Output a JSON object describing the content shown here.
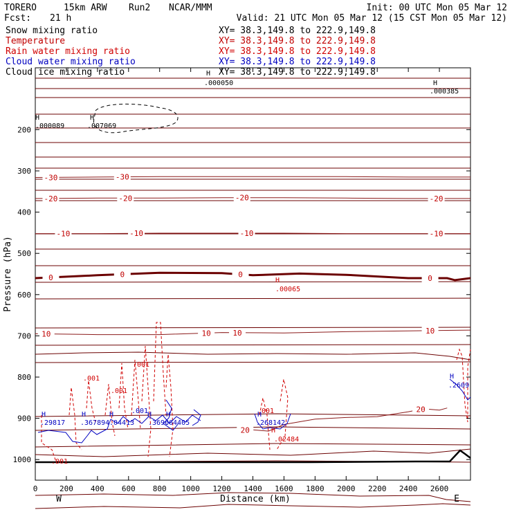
{
  "header": {
    "model_line": [
      "TORERO",
      "15km ARW",
      "Run2",
      "NCAR/MMM"
    ],
    "init": "Init: 00 UTC Mon 05 Mar 12",
    "fcst_label": "Fcst:",
    "fcst_value": "21 h",
    "valid": "Valid: 21 UTC Mon 05 Mar 12 (15 CST Mon 05 Mar 12)"
  },
  "legend": [
    {
      "name": "Snow mixing ratio",
      "xy": "XY=  38.3,149.8 to 222.9,149.8",
      "color": "#000000"
    },
    {
      "name": "Temperature",
      "xy": "XY=  38.3,149.8 to 222.9,149.8",
      "color": "#c00000"
    },
    {
      "name": "Rain water mixing ratio",
      "xy": "XY=  38.3,149.8 to 222.9,149.8",
      "color": "#d00000"
    },
    {
      "name": "Cloud water mixing ratio",
      "xy": "XY=  38.3,149.8 to 222.9,149.8",
      "color": "#0000c0"
    },
    {
      "name": "Cloud ice mixing ratio",
      "xy": "XY=  38.3,149.8 to 222.9,149.8",
      "color": "#000000"
    }
  ],
  "chart_data": {
    "type": "line",
    "title": "",
    "xlabel": "Distance (km)",
    "ylabel": "Pressure (hPa)",
    "xlim": [
      0,
      2800
    ],
    "ylim": [
      1050,
      50
    ],
    "x_ticks": [
      0,
      200,
      400,
      600,
      800,
      1000,
      1200,
      1400,
      1600,
      1800,
      2000,
      2200,
      2400,
      2600
    ],
    "y_ticks": [
      200,
      300,
      400,
      500,
      600,
      700,
      800,
      900,
      1000
    ],
    "x_end_labels": [
      "W",
      "E"
    ],
    "temperature_isotherms": [
      {
        "value": -30,
        "points": [
          [
            0,
            316
          ],
          [
            400,
            315
          ],
          [
            800,
            314
          ],
          [
            1200,
            314
          ],
          [
            1600,
            314
          ],
          [
            2000,
            314
          ],
          [
            2400,
            315
          ],
          [
            2800,
            315
          ]
        ],
        "labels": [
          [
            100,
            -30
          ],
          [
            560,
            -30
          ]
        ]
      },
      {
        "value": -20,
        "points": [
          [
            0,
            367
          ],
          [
            400,
            366
          ],
          [
            800,
            366
          ],
          [
            1200,
            365
          ],
          [
            1600,
            365
          ],
          [
            2000,
            366
          ],
          [
            2400,
            367
          ],
          [
            2800,
            367
          ]
        ],
        "labels": [
          [
            100,
            -20
          ],
          [
            580,
            -20
          ],
          [
            1330,
            -20
          ],
          [
            2580,
            -20
          ]
        ]
      },
      {
        "value": -10,
        "points": [
          [
            0,
            452
          ],
          [
            400,
            452
          ],
          [
            800,
            451
          ],
          [
            1200,
            451
          ],
          [
            1600,
            451
          ],
          [
            2000,
            452
          ],
          [
            2400,
            452
          ],
          [
            2800,
            452
          ]
        ],
        "labels": [
          [
            180,
            -10
          ],
          [
            650,
            -10
          ],
          [
            1360,
            -10
          ],
          [
            2580,
            -10
          ]
        ]
      },
      {
        "value": 0,
        "points": [
          [
            0,
            560
          ],
          [
            400,
            553
          ],
          [
            800,
            547
          ],
          [
            1200,
            548
          ],
          [
            1400,
            553
          ],
          [
            1700,
            549
          ],
          [
            2000,
            552
          ],
          [
            2400,
            560
          ],
          [
            2650,
            560
          ],
          [
            2700,
            565
          ],
          [
            2800,
            560
          ]
        ],
        "labels": [
          [
            100,
            0
          ],
          [
            560,
            0
          ],
          [
            1320,
            0
          ],
          [
            2540,
            0
          ]
        ]
      },
      {
        "value": 10,
        "points": [
          [
            0,
            695
          ],
          [
            400,
            697
          ],
          [
            800,
            697
          ],
          [
            1200,
            692
          ],
          [
            1600,
            693
          ],
          [
            2000,
            690
          ],
          [
            2400,
            688
          ],
          [
            2800,
            686
          ]
        ],
        "labels": [
          [
            70,
            10
          ],
          [
            1100,
            10
          ],
          [
            1300,
            10
          ],
          [
            2540,
            10
          ]
        ]
      },
      {
        "value": 20,
        "points": [
          [
            1400,
            928
          ],
          [
            1500,
            931
          ],
          [
            1600,
            915
          ],
          [
            1800,
            902
          ],
          [
            2000,
            898
          ],
          [
            2200,
            896
          ],
          [
            2400,
            884
          ],
          [
            2500,
            877
          ],
          [
            2600,
            880
          ],
          [
            2650,
            875
          ]
        ],
        "labels": [
          [
            1350,
            20
          ],
          [
            2480,
            20
          ]
        ]
      }
    ],
    "rain_water_labels": [
      ".001",
      ".001",
      ".001",
      ".001",
      ".001",
      ".02484"
    ],
    "rain_water_max_label": ".00065",
    "cloud_water_labels": [
      ".001",
      ".29817",
      ".367894",
      ".04413",
      ".3696",
      ".64405",
      ".268142",
      ".2609"
    ],
    "snow_labels": [
      ".000050",
      ".000385",
      ".000089",
      ".007069"
    ],
    "high_marker": "H"
  }
}
